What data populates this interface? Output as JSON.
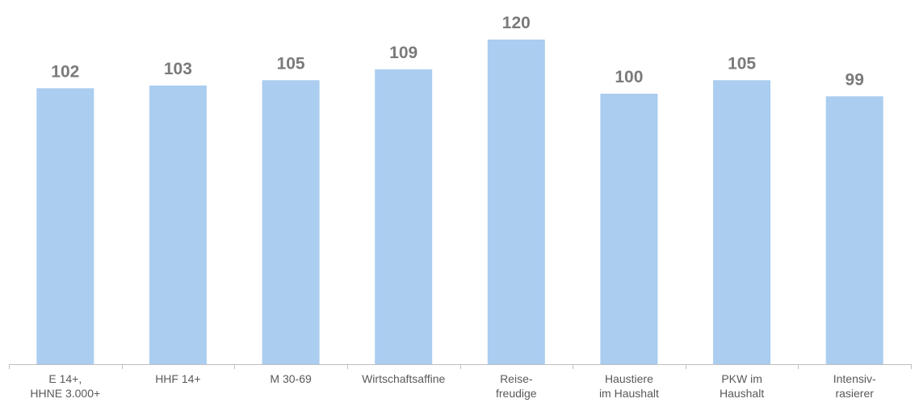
{
  "chart_data": {
    "type": "bar",
    "title": "",
    "xlabel": "",
    "ylabel": "",
    "categories": [
      [
        "E 14+,",
        "HHNE 3.000+"
      ],
      [
        "HHF 14+"
      ],
      [
        "M 30-69"
      ],
      [
        "Wirtschaftsaffine"
      ],
      [
        "Reise-",
        "freudige"
      ],
      [
        "Haustiere",
        "im Haushalt"
      ],
      [
        "PKW im",
        "Haushalt"
      ],
      [
        "Intensiv-",
        "rasierer"
      ]
    ],
    "values": [
      102,
      103,
      105,
      109,
      120,
      100,
      105,
      99
    ],
    "ylim": [
      0,
      133
    ],
    "grid": false,
    "legend": "none",
    "colors": {
      "bar": "#aacdf0",
      "value_label": "#7a7a7a",
      "tick_label": "#595959",
      "axis": "#bfbfbf"
    }
  }
}
